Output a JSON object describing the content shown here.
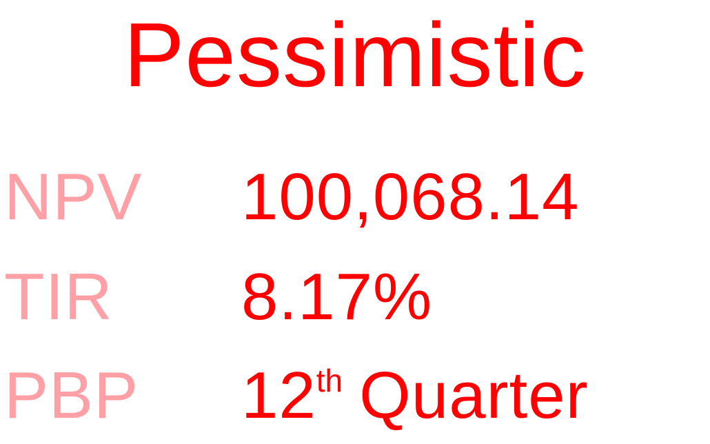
{
  "title": "Pessimistic",
  "colors": {
    "accent": "#ff0000",
    "label": "#ffa0a6"
  },
  "metrics": [
    {
      "label": "NPV",
      "value": "100,068.14"
    },
    {
      "label": "TIR",
      "value": "8.17%"
    },
    {
      "label": "PBP",
      "value_number": "12",
      "value_suffix": "th",
      "value_unit": "Quarter"
    }
  ]
}
